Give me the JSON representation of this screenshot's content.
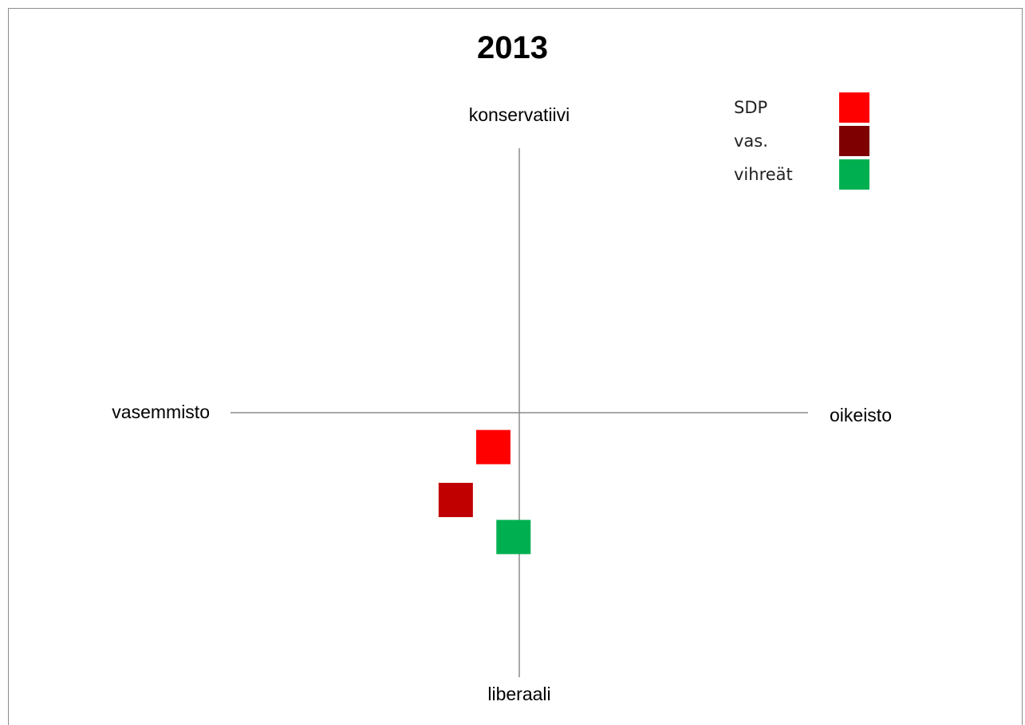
{
  "chart_data": {
    "type": "scatter",
    "title": "2013",
    "axes": {
      "top_label": "konservatiivi",
      "bottom_label": "liberaali",
      "left_label": "vasemmisto",
      "right_label": "oikeisto",
      "xlim": [
        -1,
        1
      ],
      "ylim": [
        -1,
        1
      ],
      "grid": false
    },
    "marker": "square",
    "legend_position": "top-right",
    "legend": [
      {
        "name": "SDP",
        "color": "#ff0000"
      },
      {
        "name": "vas.",
        "color": "#7f0000"
      },
      {
        "name": "vihreät",
        "color": "#00b050"
      }
    ],
    "points": [
      {
        "x": -0.09,
        "y": -0.13,
        "color": "#ff0000"
      },
      {
        "x": -0.22,
        "y": -0.33,
        "color": "#c00000"
      },
      {
        "x": -0.02,
        "y": -0.47,
        "color": "#00b050"
      }
    ]
  }
}
